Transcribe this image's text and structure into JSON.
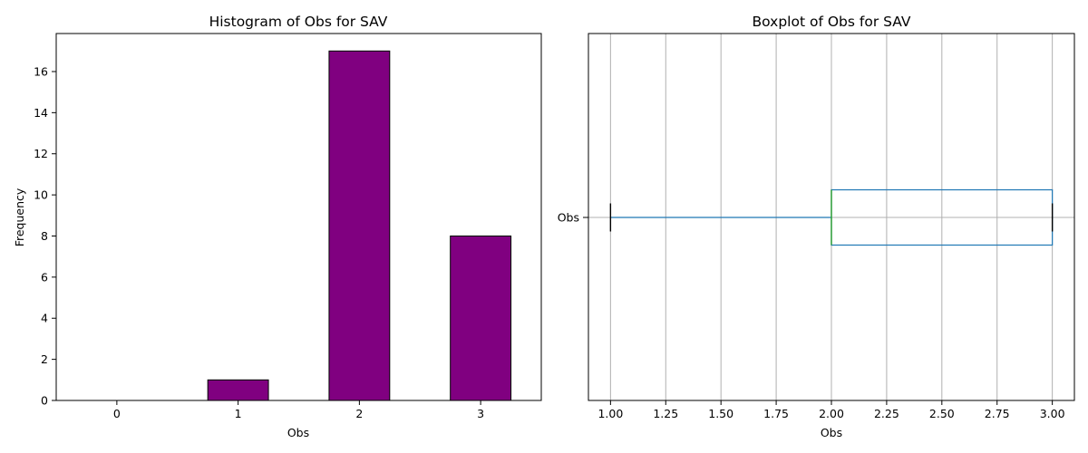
{
  "chart_data": [
    {
      "type": "bar",
      "title": "Histogram of Obs for SAV",
      "xlabel": "Obs",
      "ylabel": "Frequency",
      "categories": [
        "0",
        "1",
        "2",
        "3"
      ],
      "values": [
        0,
        1,
        17,
        8
      ],
      "ylim": [
        0,
        17.85
      ],
      "yticks": [
        "0",
        "2",
        "4",
        "6",
        "8",
        "10",
        "12",
        "14",
        "16"
      ],
      "bar_color": "#800080",
      "edge_color": "#000000",
      "grid": false
    },
    {
      "type": "boxplot",
      "title": "Boxplot of Obs for SAV",
      "xlabel": "Obs",
      "category": "Obs",
      "orientation": "horizontal",
      "xlim": [
        0.9,
        3.1
      ],
      "xticks": [
        "1.00",
        "1.25",
        "1.50",
        "1.75",
        "2.00",
        "2.25",
        "2.50",
        "2.75",
        "3.00"
      ],
      "stats": {
        "whisker_low": 1.0,
        "q1": 2.0,
        "median": 2.0,
        "q3": 3.0,
        "whisker_high": 3.0
      },
      "box_color": "#1f77b4",
      "median_color": "#2ca02c",
      "grid": true
    }
  ]
}
